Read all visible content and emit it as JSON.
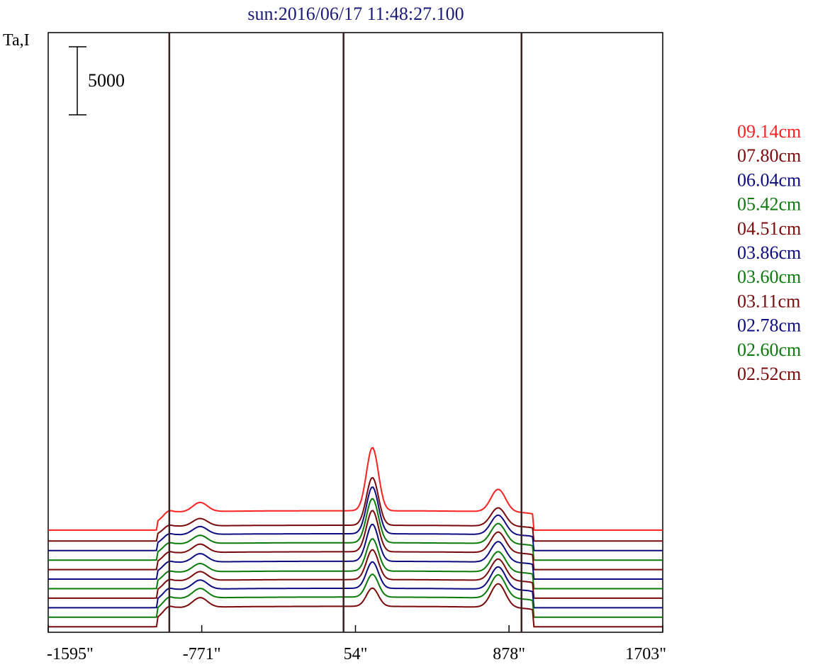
{
  "chart_data": {
    "type": "line",
    "title": "sun:2016/06/17 11:48:27.100",
    "ylabel": "Ta,I",
    "xlabel": "",
    "x_tick_labels": [
      "-1595\"",
      "-771\"",
      "54\"",
      "878\"",
      "1703\""
    ],
    "x_ticks": [
      -1595,
      -771,
      54,
      878,
      1703
    ],
    "xlim": [
      -1595,
      1703
    ],
    "grid": false,
    "scale_bar": {
      "label": "5000",
      "value": 5000
    },
    "vertical_markers": [
      -945,
      -10,
      945
    ],
    "legend_position": "right",
    "series": [
      {
        "name": "09.14cm",
        "color": "#ff2020",
        "peak": 14000,
        "baseline": 6500
      },
      {
        "name": "07.80cm",
        "color": "#7a0a0a",
        "peak": 11800,
        "baseline": 5700
      },
      {
        "name": "06.04cm",
        "color": "#0c0c80",
        "peak": 11500,
        "baseline": 5000
      },
      {
        "name": "05.42cm",
        "color": "#0a7a0a",
        "peak": 11000,
        "baseline": 4300
      },
      {
        "name": "04.51cm",
        "color": "#7a0a0a",
        "peak": 10500,
        "baseline": 3600
      },
      {
        "name": "03.86cm",
        "color": "#0c0c80",
        "peak": 9800,
        "baseline": 2900
      },
      {
        "name": "03.60cm",
        "color": "#0a7a0a",
        "peak": 9000,
        "baseline": 2200
      },
      {
        "name": "03.11cm",
        "color": "#7a0a0a",
        "peak": 8700,
        "baseline": 1500
      },
      {
        "name": "02.78cm",
        "color": "#0c0c80",
        "peak": 8300,
        "baseline": 800
      },
      {
        "name": "02.60cm",
        "color": "#0a7a0a",
        "peak": 7900,
        "baseline": 100
      },
      {
        "name": "02.52cm",
        "color": "#7a0a0a",
        "peak": 7300,
        "baseline": -600
      }
    ]
  }
}
